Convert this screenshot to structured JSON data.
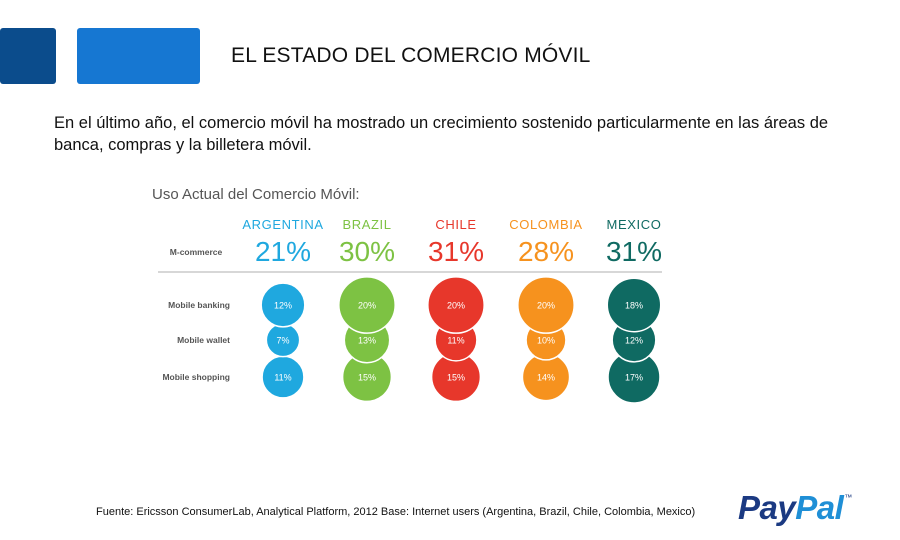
{
  "header": {
    "title": "EL ESTADO DEL COMERCIO MÓVIL"
  },
  "intro": "En el último año, el comercio móvil ha mostrado un crecimiento sostenido particularmente en las áreas de banca, compras y la billetera móvil.",
  "footer": {
    "source": "Fuente: Ericsson ConsumerLab, Analytical Platform, 2012 Base: Internet users (Argentina, Brazil, Chile, Colombia, Mexico)",
    "logo_part1": "Pay",
    "logo_part2": "Pal",
    "logo_tm": "™"
  },
  "chart_data": {
    "type": "bubble-matrix",
    "title": "Uso Actual del Comercio Móvil:",
    "categories": [
      "ARGENTINA",
      "BRAZIL",
      "CHILE",
      "COLOMBIA",
      "MEXICO"
    ],
    "headline_row": {
      "label": "M-commerce",
      "values": [
        21,
        30,
        31,
        28,
        31
      ],
      "labels": [
        "21%",
        "30%",
        "31%",
        "28%",
        "31%"
      ]
    },
    "rows": [
      {
        "label": "Mobile banking",
        "values": [
          12,
          20,
          20,
          20,
          18
        ],
        "labels": [
          "12%",
          "20%",
          "20%",
          "20%",
          "18%"
        ]
      },
      {
        "label": "Mobile wallet",
        "values": [
          7,
          13,
          11,
          10,
          12
        ],
        "labels": [
          "7%",
          "13%",
          "11%",
          "10%",
          "12%"
        ]
      },
      {
        "label": "Mobile shopping",
        "values": [
          11,
          15,
          15,
          14,
          17
        ],
        "labels": [
          "11%",
          "15%",
          "15%",
          "14%",
          "17%"
        ]
      }
    ],
    "colors": [
      "#1fa8df",
      "#7dc243",
      "#e7372b",
      "#f6921e",
      "#0f6a62"
    ]
  }
}
